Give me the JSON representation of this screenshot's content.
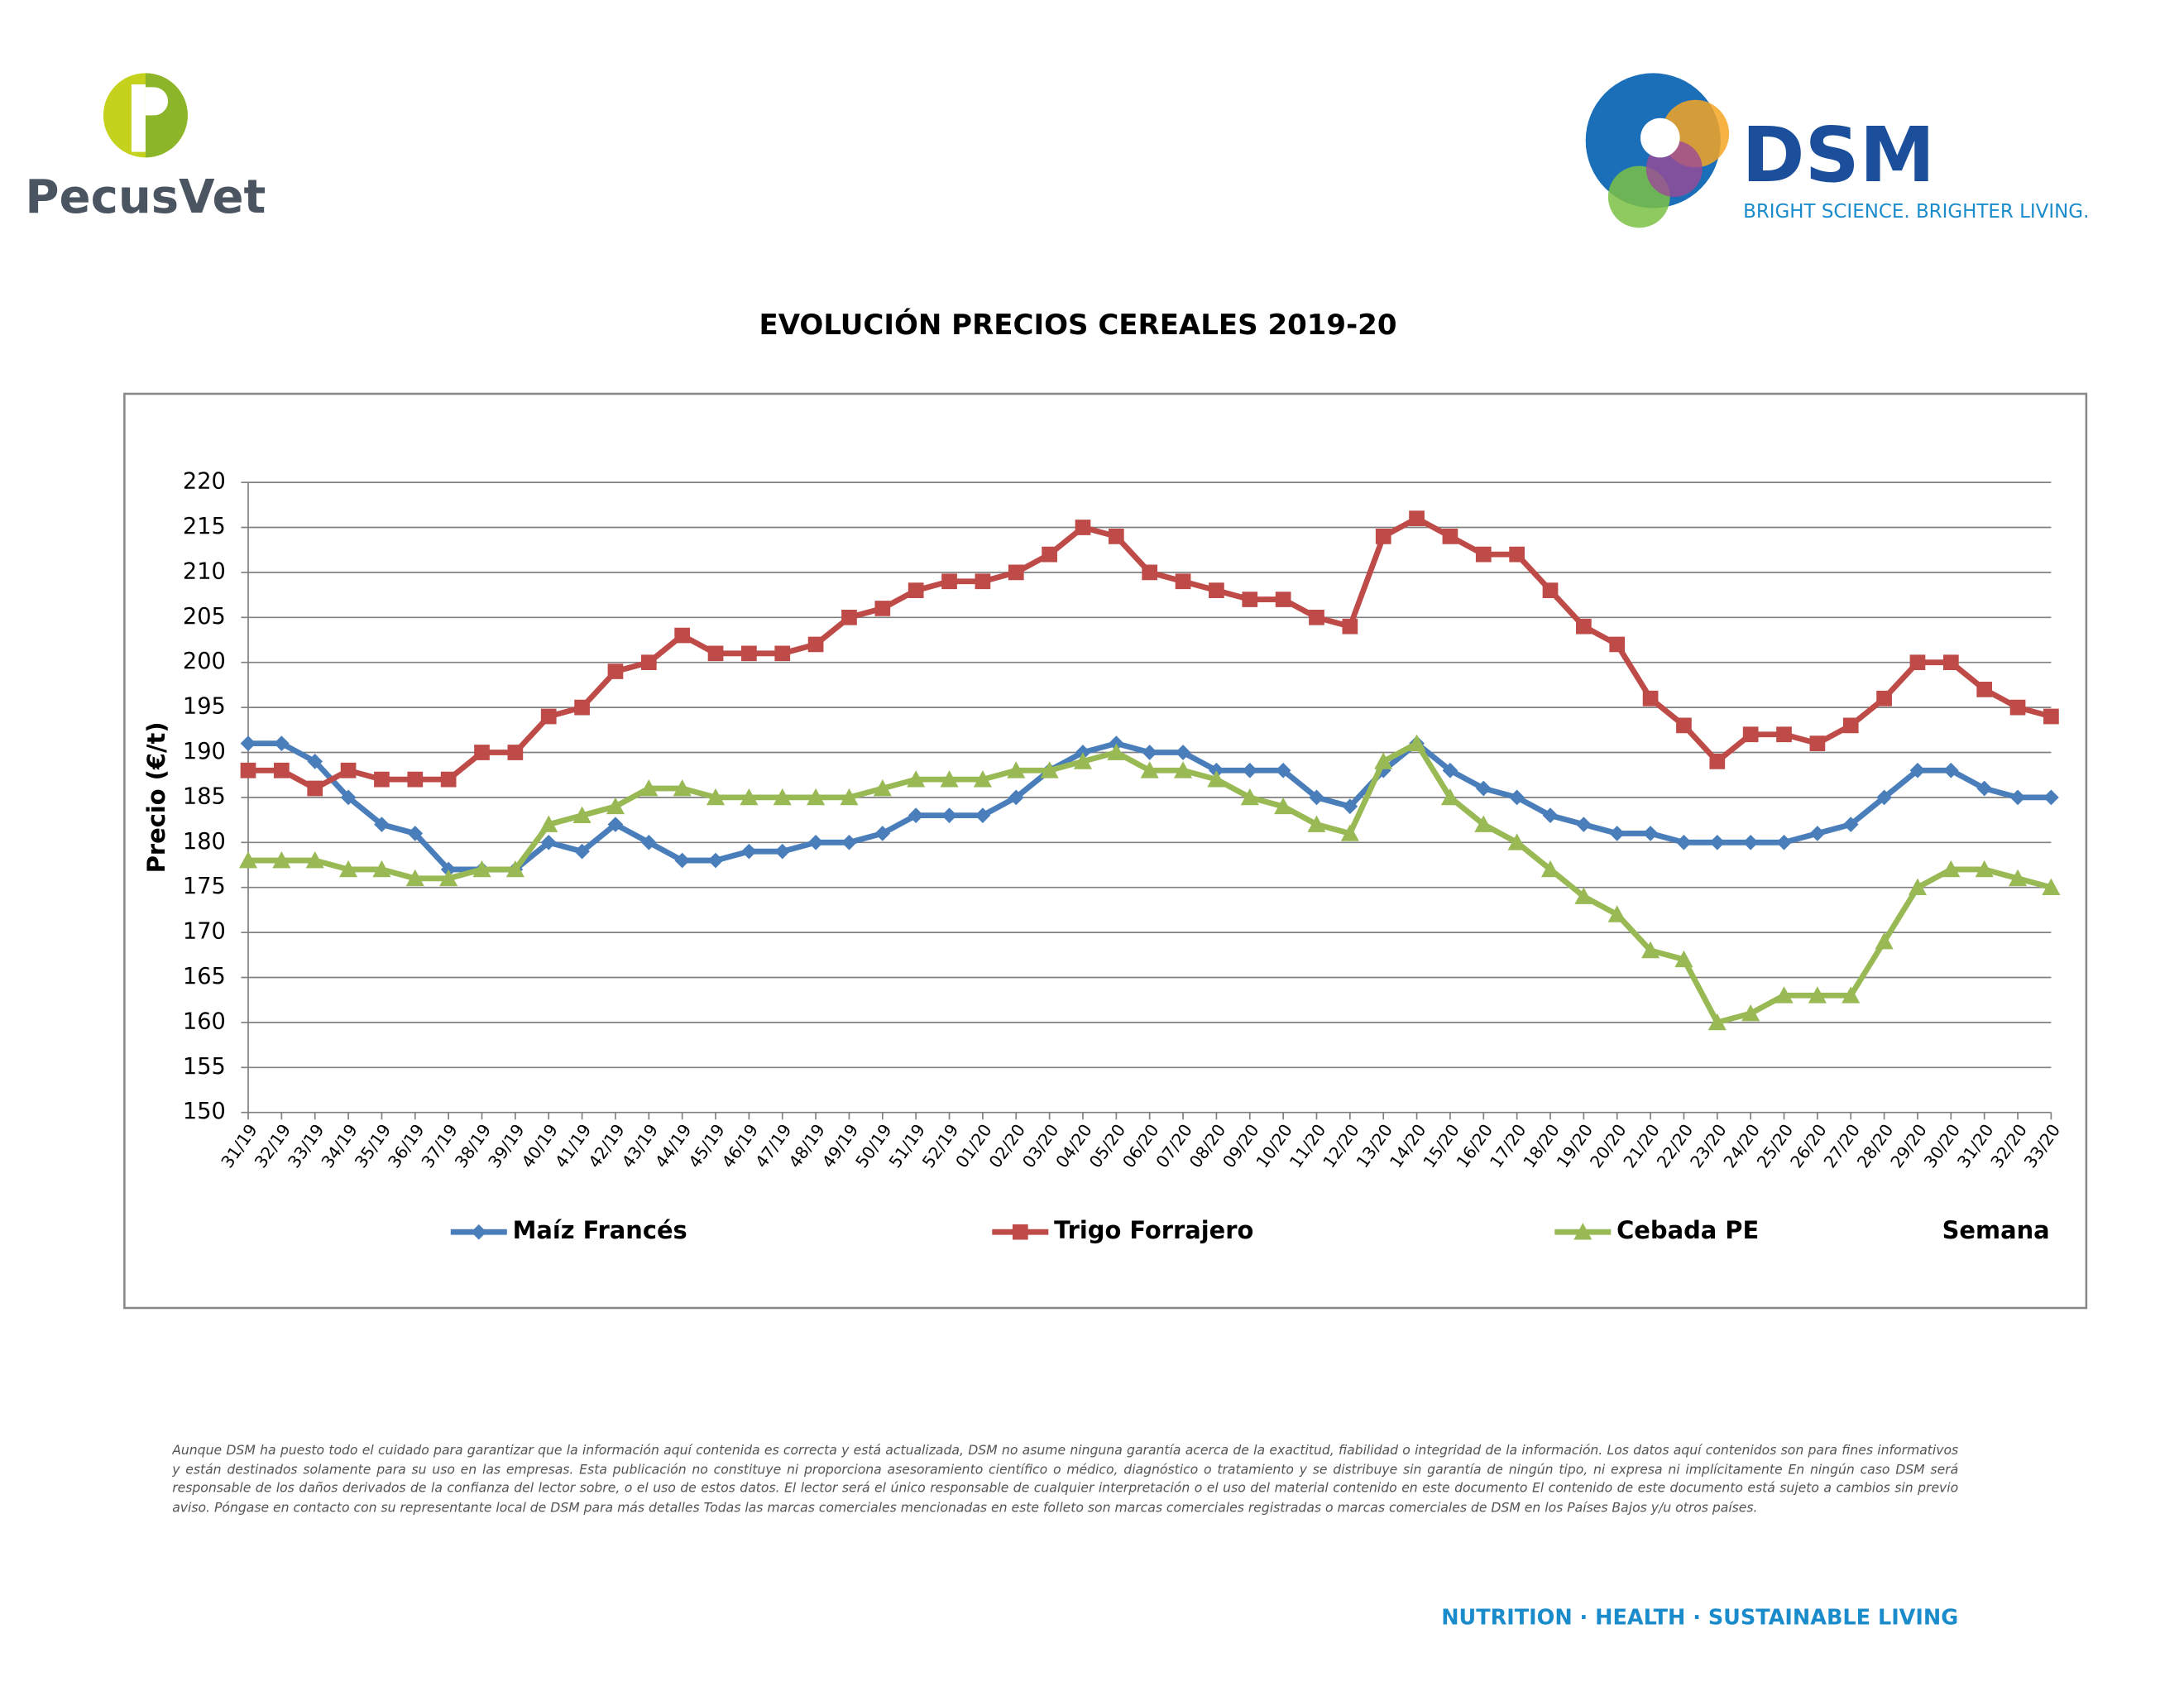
{
  "header": {
    "left_logo": "PecusVet",
    "right_logo": "DSM",
    "right_tagline": "BRIGHT SCIENCE. BRIGHTER LIVING."
  },
  "chart_data": {
    "type": "line",
    "title": "EVOLUCIÓN PRECIOS CEREALES 2019-20",
    "y_label": "Precio (€/t)",
    "x_label": "Semana",
    "categories": [
      "31/19",
      "32/19",
      "33/19",
      "34/19",
      "35/19",
      "36/19",
      "37/19",
      "38/19",
      "39/19",
      "40/19",
      "41/19",
      "42/19",
      "43/19",
      "44/19",
      "45/19",
      "46/19",
      "47/19",
      "48/19",
      "49/19",
      "50/19",
      "51/19",
      "52/19",
      "01/20",
      "02/20",
      "03/20",
      "04/20",
      "05/20",
      "06/20",
      "07/20",
      "08/20",
      "09/20",
      "10/20",
      "11/20",
      "12/20",
      "13/20",
      "14/20",
      "15/20",
      "16/20",
      "17/20",
      "18/20",
      "19/20",
      "20/20",
      "21/20",
      "22/20",
      "23/20",
      "24/20",
      "25/20",
      "26/20",
      "27/20",
      "28/20",
      "29/20",
      "30/20",
      "31/20",
      "32/20",
      "33/20"
    ],
    "series": [
      {
        "name": "Maíz Francés",
        "color": "#4a7ebb",
        "marker": "diamond",
        "values": [
          191,
          191,
          189,
          185,
          182,
          181,
          177,
          177,
          177,
          180,
          179,
          182,
          180,
          178,
          178,
          179,
          179,
          180,
          180,
          181,
          183,
          183,
          183,
          185,
          188,
          190,
          191,
          190,
          190,
          188,
          188,
          188,
          185,
          184,
          188,
          191,
          188,
          186,
          185,
          183,
          182,
          181,
          181,
          180,
          180,
          180,
          180,
          181,
          182,
          185,
          188,
          188,
          186,
          185,
          185
        ]
      },
      {
        "name": "Trigo Forrajero",
        "color": "#be4b48",
        "marker": "square",
        "values": [
          188,
          188,
          186,
          188,
          187,
          187,
          187,
          190,
          190,
          194,
          195,
          199,
          200,
          203,
          201,
          201,
          201,
          202,
          205,
          206,
          208,
          209,
          209,
          210,
          212,
          215,
          214,
          210,
          209,
          208,
          207,
          207,
          205,
          204,
          214,
          216,
          214,
          212,
          212,
          208,
          204,
          202,
          196,
          193,
          189,
          192,
          192,
          191,
          193,
          196,
          200,
          200,
          197,
          195,
          194
        ]
      },
      {
        "name": "Cebada PE",
        "color": "#98b954",
        "marker": "triangle",
        "values": [
          178,
          178,
          178,
          177,
          177,
          176,
          176,
          177,
          177,
          182,
          183,
          184,
          186,
          186,
          185,
          185,
          185,
          185,
          185,
          186,
          187,
          187,
          187,
          188,
          188,
          189,
          190,
          188,
          188,
          187,
          185,
          184,
          182,
          181,
          189,
          191,
          185,
          182,
          180,
          177,
          174,
          172,
          168,
          167,
          160,
          161,
          163,
          163,
          163,
          169,
          175,
          177,
          177,
          176,
          175
        ]
      }
    ],
    "ylim": [
      150,
      220
    ],
    "yticks": [
      150,
      155,
      160,
      165,
      170,
      175,
      180,
      185,
      190,
      195,
      200,
      205,
      210,
      215,
      220
    ],
    "grid": true
  },
  "disclaimer": "Aunque DSM ha puesto todo el cuidado para garantizar que la información aquí contenida es correcta y está actualizada, DSM no asume ninguna garantía acerca de la exactitud, fiabilidad o integridad de la información. Los datos aquí contenidos son para fines informativos y están destinados solamente para su uso en las empresas. Esta publicación no constituye ni proporciona asesoramiento científico o médico, diagnóstico o tratamiento y se distribuye sin garantía de ningún tipo, ni expresa ni implícitamente En ningún caso DSM será responsable de los daños derivados de la confianza del lector sobre, o el uso de estos datos. El lector será el único responsable de cualquier interpretación o el uso del material contenido en este documento El contenido de este documento está sujeto a cambios sin previo aviso. Póngase en contacto con su representante local de DSM para más detalles Todas las marcas comerciales mencionadas en este folleto son marcas comerciales registradas o marcas comerciales de DSM en los Países Bajos y/u otros países.",
  "footer": "NUTRITION · HEALTH · SUSTAINABLE LIVING"
}
